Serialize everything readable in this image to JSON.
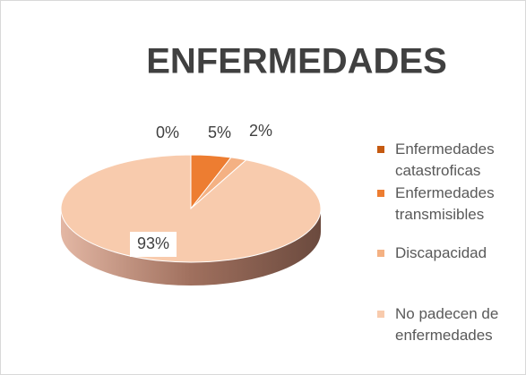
{
  "chart_data": {
    "type": "pie",
    "title": "ENFERMEDADES",
    "categories": [
      "Enfermedades catastroficas",
      "Enfermedades transmisibles",
      "Discapacidad",
      "No padecen de enfermedades"
    ],
    "values": [
      0,
      5,
      2,
      93
    ],
    "value_labels": [
      "0%",
      "5%",
      "2%",
      "93%"
    ],
    "colors": [
      "#c55a11",
      "#ed7d31",
      "#f4b183",
      "#f8cbad"
    ],
    "legend": "right"
  }
}
